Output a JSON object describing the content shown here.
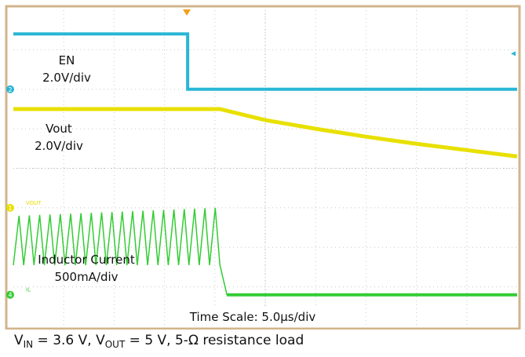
{
  "chart_data": {
    "type": "line",
    "title": "",
    "grid": true,
    "x_unit": "µs",
    "x_per_div": 5.0,
    "x_divisions": 10,
    "y_divisions": 8,
    "time_scale_label": "Time Scale: 5.0µs/div",
    "trigger_time_us": 17.3,
    "series": [
      {
        "name": "EN",
        "channel": "2",
        "scale_label": "2.0V/div",
        "color": "#29b6d6",
        "points_time_us": [
          0,
          17.3,
          17.3,
          50
        ],
        "points_div": [
          1.4,
          1.4,
          0,
          0
        ],
        "ground_div_from_top": 2.0
      },
      {
        "name": "Vout",
        "channel": "1",
        "scale_label": "2.0V/div",
        "marker_text": "VOUT",
        "color": "#e8e000",
        "points_time_us": [
          0,
          20.5,
          25,
          30,
          35,
          40,
          45,
          50
        ],
        "points_div": [
          2.5,
          2.5,
          2.22,
          2.0,
          1.8,
          1.62,
          1.46,
          1.3
        ],
        "ground_div_from_top": 5.0
      },
      {
        "name": "Inductor Current",
        "channel": "4",
        "scale_label": "500mA/div",
        "marker_text": "IL",
        "color": "#33cc33",
        "ramp_peak_div": 2.0,
        "ramp_valley_div": 0.75,
        "ramp_peak_final_div": 2.2,
        "ramp_cycles": 20,
        "switching_stop_time_us": 20.5,
        "fall_end_time_us": 21.2,
        "after_level_div": 0,
        "ground_div_from_top": 7.2
      }
    ]
  },
  "caption": {
    "v": "V",
    "in_sub": "IN",
    "mid": " = 3.6 V, V",
    "out_sub": "OUT",
    "tail": " = 5 V, 5-Ω resistance load"
  }
}
